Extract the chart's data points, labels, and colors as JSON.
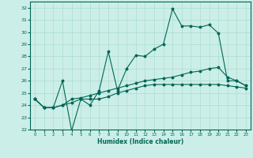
{
  "xlabel": "Humidex (Indice chaleur)",
  "ylabel": "",
  "bg_color": "#cceee8",
  "grid_color": "#aaddcc",
  "line_color": "#006655",
  "xlim": [
    -0.5,
    23.5
  ],
  "ylim": [
    22,
    32.5
  ],
  "yticks": [
    22,
    23,
    24,
    25,
    26,
    27,
    28,
    29,
    30,
    31,
    32
  ],
  "xticks": [
    0,
    1,
    2,
    3,
    4,
    5,
    6,
    7,
    8,
    9,
    10,
    11,
    12,
    13,
    14,
    15,
    16,
    17,
    18,
    19,
    20,
    21,
    22,
    23
  ],
  "series": [
    [
      24.5,
      23.8,
      23.8,
      26.0,
      21.9,
      24.5,
      24.0,
      25.2,
      28.4,
      25.2,
      27.0,
      28.1,
      28.0,
      28.6,
      29.0,
      31.9,
      30.5,
      30.5,
      30.4,
      30.6,
      29.9,
      26.0,
      26.0,
      25.6
    ],
    [
      24.5,
      23.8,
      23.8,
      24.0,
      24.5,
      24.6,
      24.8,
      25.0,
      25.2,
      25.4,
      25.6,
      25.8,
      26.0,
      26.1,
      26.2,
      26.3,
      26.5,
      26.7,
      26.8,
      27.0,
      27.1,
      26.3,
      26.0,
      25.6
    ],
    [
      24.5,
      23.8,
      23.8,
      24.0,
      24.2,
      24.5,
      24.5,
      24.5,
      24.7,
      25.0,
      25.2,
      25.4,
      25.6,
      25.7,
      25.7,
      25.7,
      25.7,
      25.7,
      25.7,
      25.7,
      25.7,
      25.6,
      25.5,
      25.4
    ]
  ]
}
